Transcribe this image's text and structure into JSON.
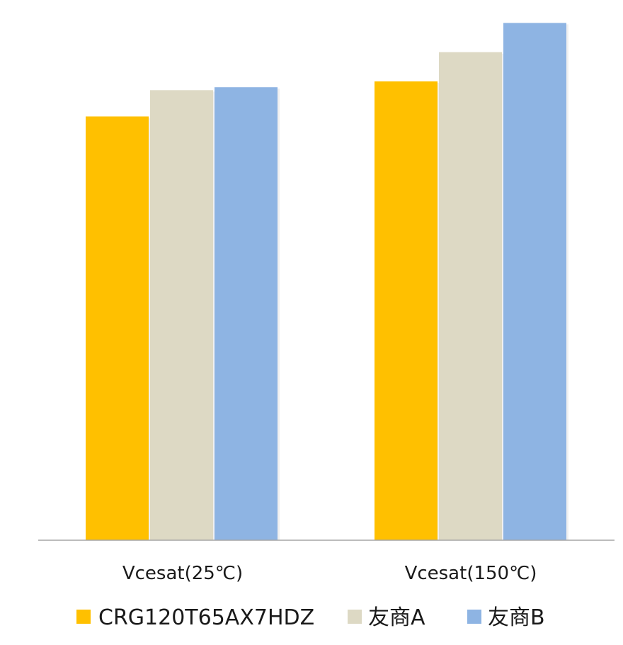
{
  "chart_data": {
    "type": "bar",
    "title": "",
    "xlabel": "",
    "ylabel": "",
    "categories": [
      "Vcesat(25℃)",
      "Vcesat(150℃)"
    ],
    "series": [
      {
        "name": "CRG120T65AX7HDZ",
        "color": "#FFC000",
        "values": [
          1.45,
          1.57
        ]
      },
      {
        "name": "友商A",
        "color": "#DDD9C4",
        "values": [
          1.54,
          1.67
        ]
      },
      {
        "name": "友商B",
        "color": "#8EB4E3",
        "values": [
          1.55,
          1.77
        ]
      }
    ],
    "ylim": [
      0,
      1.8
    ],
    "grid": false,
    "legend_position": "bottom"
  }
}
